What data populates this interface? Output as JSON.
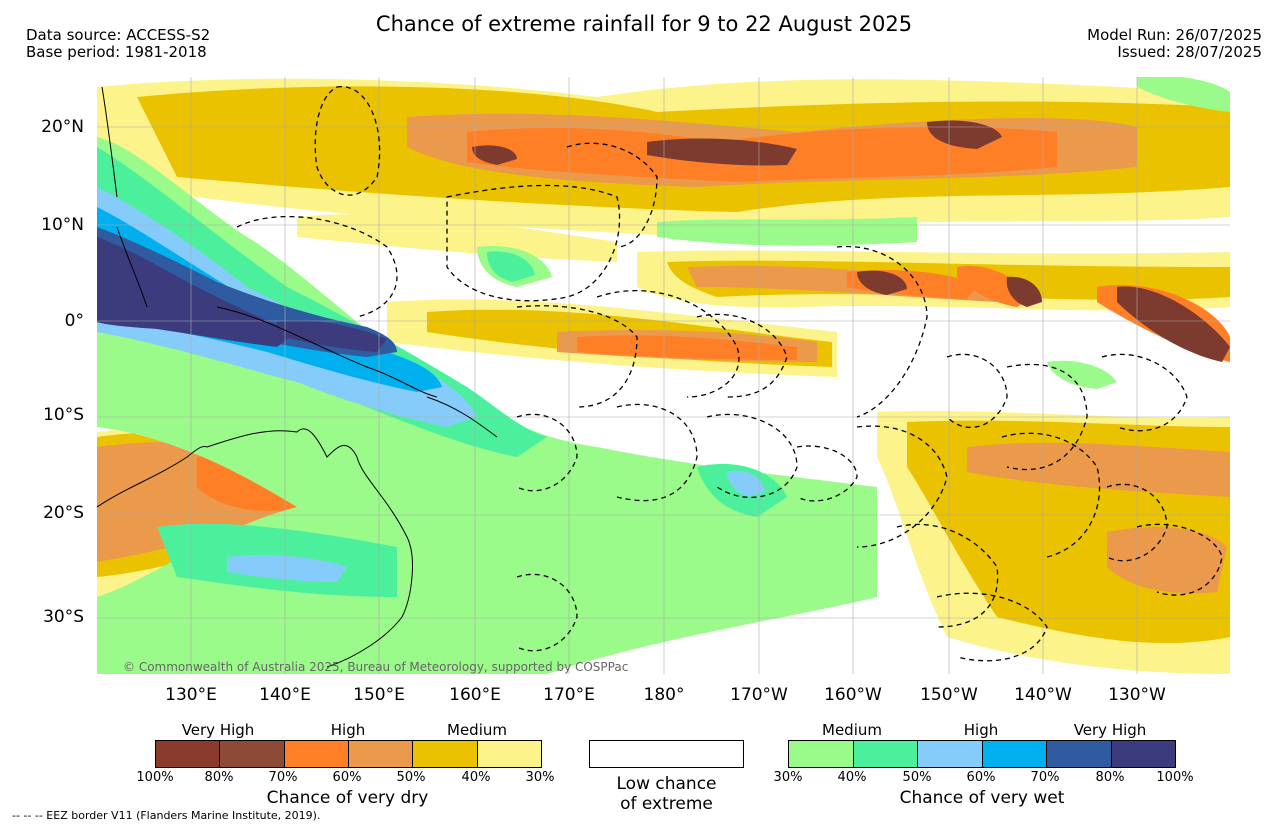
{
  "title": "Chance of extreme rainfall for 9 to 22 August 2025",
  "header_left": {
    "line1": "Data source: ACCESS-S2",
    "line2": "Base period: 1981-2018"
  },
  "header_right": {
    "line1": "Model Run: 26/07/2025",
    "line2": "Issued: 28/07/2025"
  },
  "lat_labels": [
    "20°N",
    "10°N",
    "0°",
    "10°S",
    "20°S",
    "30°S"
  ],
  "lon_labels": [
    "130°E",
    "140°E",
    "150°E",
    "160°E",
    "170°E",
    "180°",
    "170°W",
    "160°W",
    "150°W",
    "140°W",
    "130°W"
  ],
  "copyright": "© Commonwealth of Australia 2025, Bureau of Meteorology, supported by COSPPac",
  "dry_legend": {
    "categories": [
      "Very High",
      "High",
      "Medium"
    ],
    "ticks": [
      "100%",
      "80%",
      "70%",
      "60%",
      "50%",
      "40%",
      "30%"
    ],
    "colors": [
      "#8B3A2E",
      "#8D4A37",
      "#FF7F27",
      "#EB9A4C",
      "#EAC200",
      "#FCF48A"
    ],
    "title": "Chance of very dry"
  },
  "low_legend": {
    "line1": "Low chance",
    "line2": "of extreme"
  },
  "wet_legend": {
    "categories": [
      "Medium",
      "High",
      "Very High"
    ],
    "ticks": [
      "30%",
      "40%",
      "50%",
      "60%",
      "70%",
      "80%",
      "100%"
    ],
    "colors": [
      "#9BFB8A",
      "#4CF09C",
      "#86CCFB",
      "#00B0EE",
      "#2F5CA0",
      "#3B3B7D"
    ],
    "title": "Chance of very wet"
  },
  "eez_note": "--  --  -- EEZ border V11 (Flanders Marine Institute, 2019).",
  "map_regions": {
    "dry_very_high": "#7D3A2E",
    "dry_high": "#FF7F27",
    "dry_med_high": "#EB9A4C",
    "dry_medium": "#EAC200",
    "dry_low": "#FCF48A",
    "wet_low": "#9BFB8A",
    "wet_medium": "#4CF09C",
    "wet_high": "#86CCFB",
    "wet_higher": "#00B0EE",
    "wet_very_high": "#3B3B7D"
  }
}
